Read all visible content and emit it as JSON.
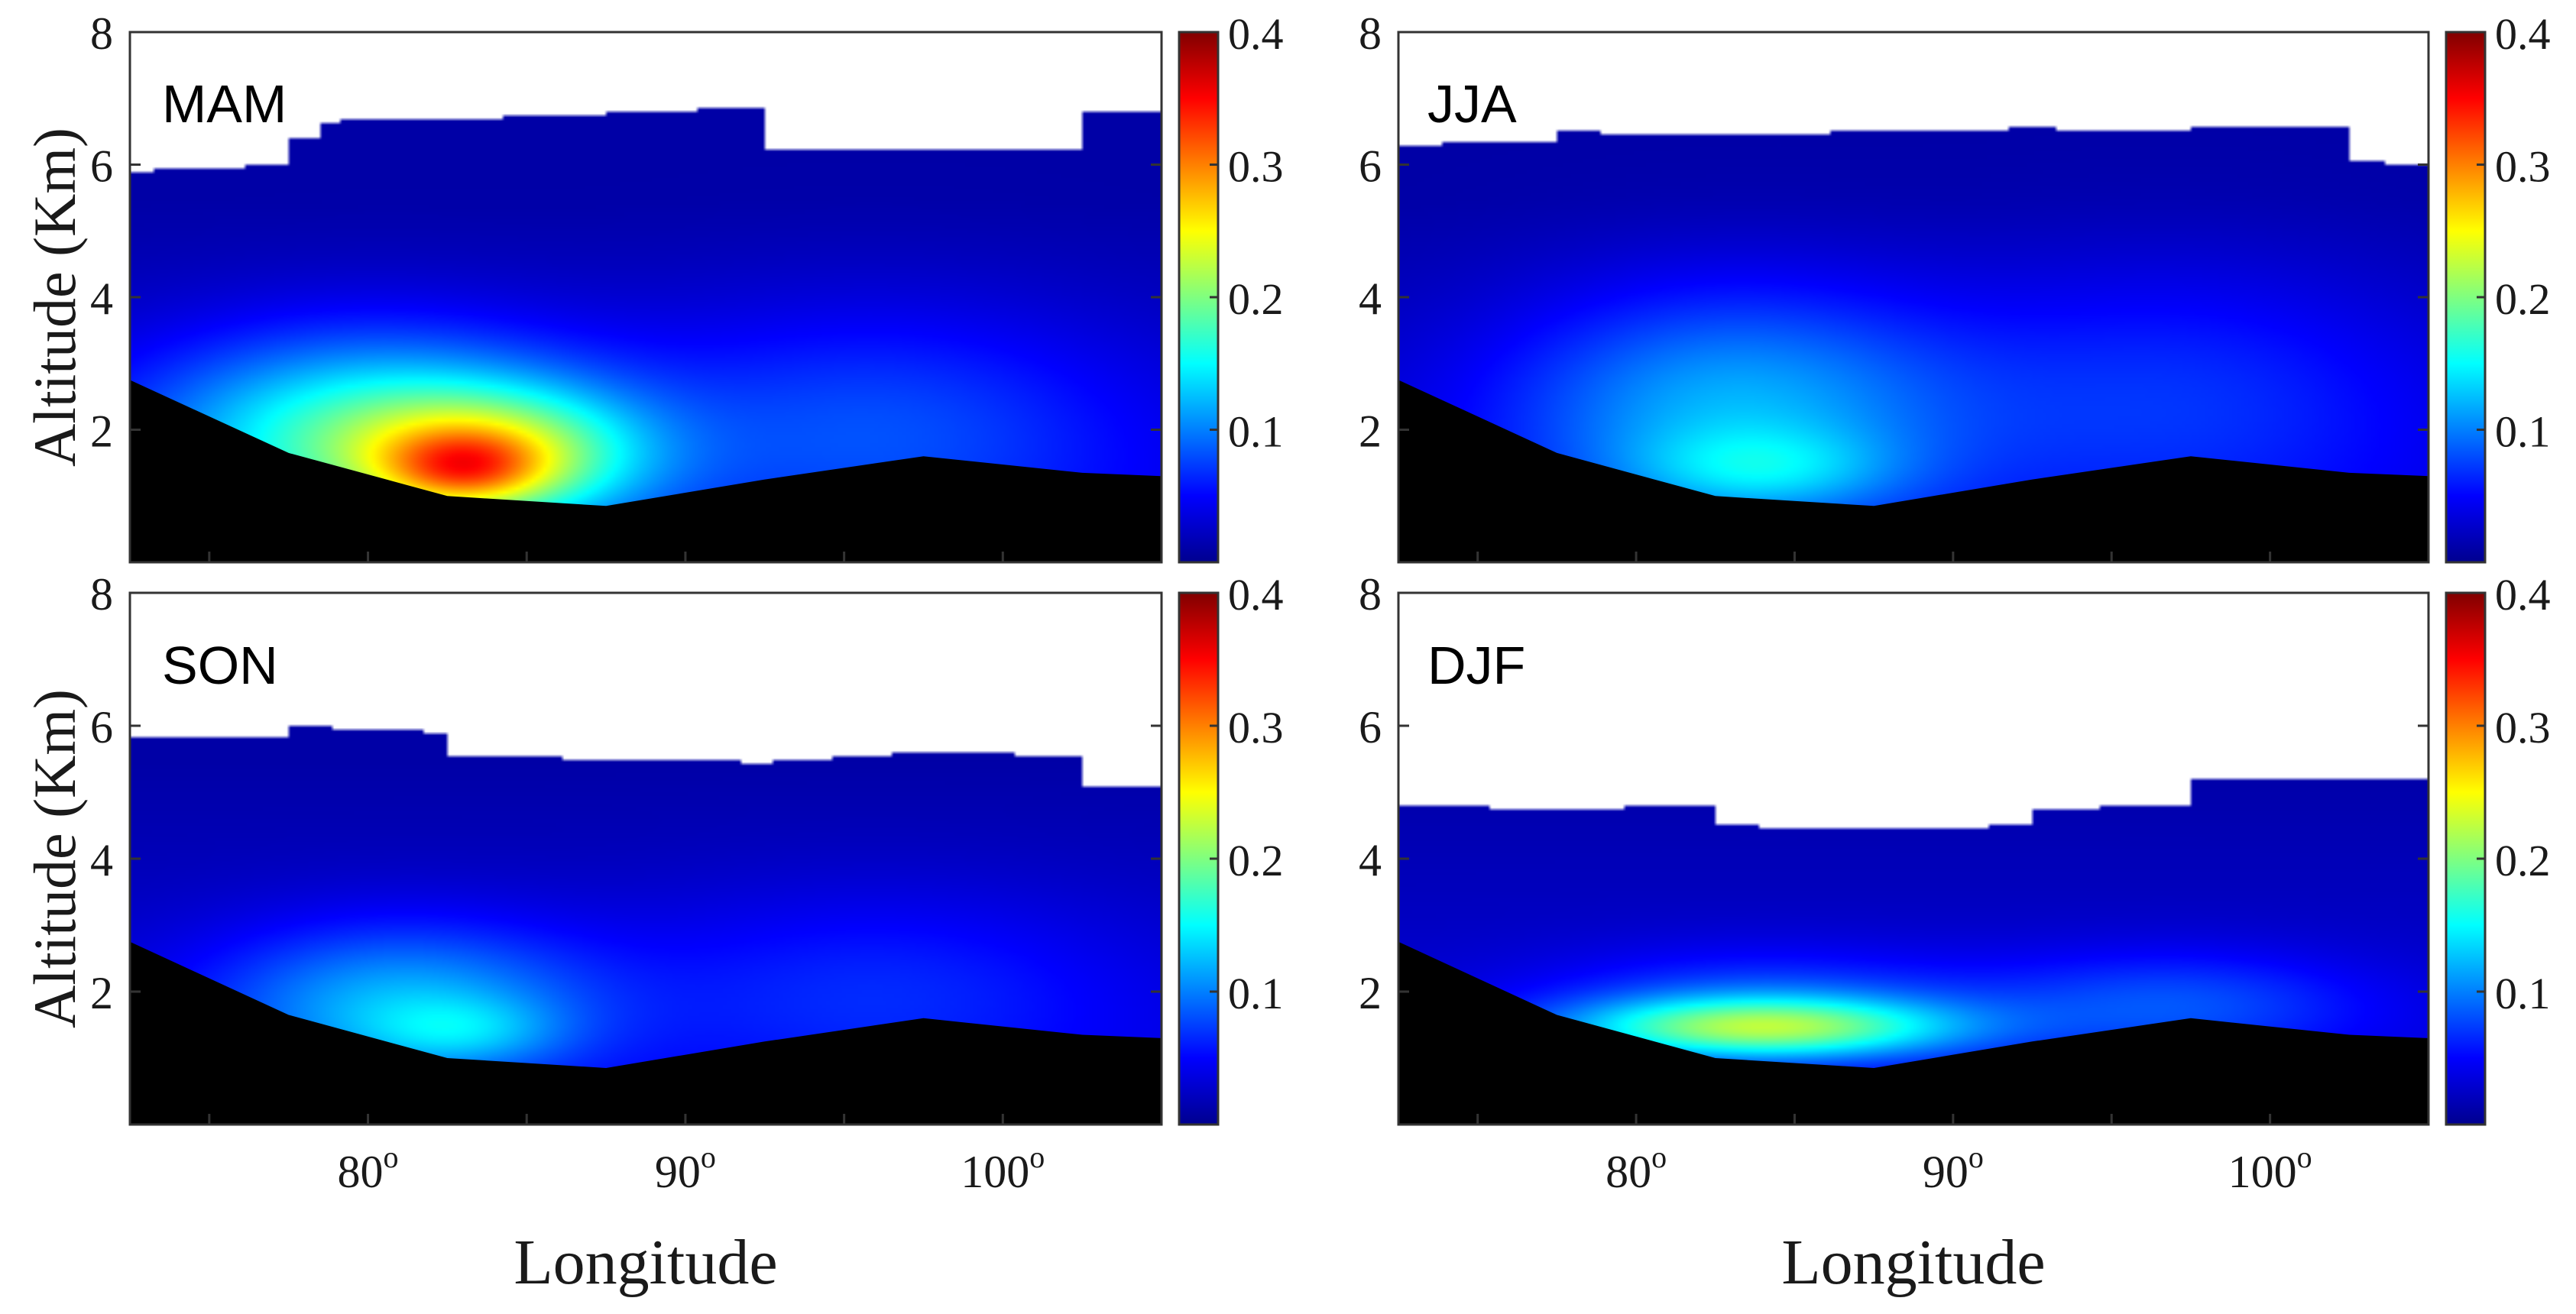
{
  "chart_data": [
    {
      "type": "heatmap",
      "season": "MAM",
      "xlabel": "",
      "ylabel": "Altitude (Km)",
      "xlim": [
        72.5,
        105
      ],
      "ylim": [
        0,
        8
      ],
      "yticks": [
        "2",
        "4",
        "6",
        "8"
      ],
      "xticks": [],
      "colorbar": {
        "min": 0,
        "max": 0.4,
        "ticks": [
          "0.1",
          "0.2",
          "0.3",
          "0.4"
        ]
      },
      "top": [
        [
          72.5,
          5.9
        ],
        [
          77.5,
          6.0
        ],
        [
          77.5,
          6.4
        ],
        [
          78.5,
          6.4
        ],
        [
          78.5,
          6.65
        ],
        [
          87.5,
          6.75
        ],
        [
          87.5,
          6.8
        ],
        [
          92.5,
          6.85
        ],
        [
          92.5,
          6.25
        ],
        [
          97.5,
          6.2
        ],
        [
          102.5,
          6.25
        ],
        [
          102.5,
          6.8
        ],
        [
          105,
          6.8
        ]
      ],
      "terrain": [
        [
          72.5,
          2.75
        ],
        [
          77.5,
          1.65
        ],
        [
          82.5,
          1.0
        ],
        [
          87.5,
          0.85
        ],
        [
          92.5,
          1.25
        ],
        [
          97.5,
          1.6
        ],
        [
          102.5,
          1.35
        ],
        [
          105,
          1.3
        ]
      ],
      "blobs": [
        {
          "lon": 80,
          "alt": 1.9,
          "slon": 7,
          "salt": 1.5,
          "v": 0.14
        },
        {
          "lon": 84,
          "alt": 1.6,
          "slon": 4.5,
          "salt": 0.95,
          "v": 0.13
        },
        {
          "lon": 83,
          "alt": 1.4,
          "slon": 2.5,
          "salt": 0.55,
          "v": 0.09
        },
        {
          "lon": 96,
          "alt": 2.0,
          "slon": 8,
          "salt": 1.8,
          "v": 0.05
        }
      ]
    },
    {
      "type": "heatmap",
      "season": "JJA",
      "xlabel": "",
      "ylabel": "",
      "xlim": [
        72.5,
        105
      ],
      "ylim": [
        0,
        8
      ],
      "yticks": [
        "2",
        "4",
        "6",
        "8"
      ],
      "xticks": [],
      "colorbar": {
        "min": 0,
        "max": 0.4,
        "ticks": [
          "0.1",
          "0.2",
          "0.3",
          "0.4"
        ]
      },
      "top": [
        [
          72.5,
          6.3
        ],
        [
          77.5,
          6.35
        ],
        [
          77.5,
          6.5
        ],
        [
          82.5,
          6.45
        ],
        [
          87.5,
          6.5
        ],
        [
          92.5,
          6.55
        ],
        [
          97.5,
          6.5
        ],
        [
          97.5,
          6.6
        ],
        [
          102.5,
          6.55
        ],
        [
          102.5,
          6.05
        ],
        [
          105,
          6.0
        ]
      ],
      "terrain": [
        [
          72.5,
          2.75
        ],
        [
          77.5,
          1.65
        ],
        [
          82.5,
          1.0
        ],
        [
          87.5,
          0.85
        ],
        [
          92.5,
          1.25
        ],
        [
          97.5,
          1.6
        ],
        [
          102.5,
          1.35
        ],
        [
          105,
          1.3
        ]
      ],
      "blobs": [
        {
          "lon": 83,
          "alt": 2.3,
          "slon": 7,
          "salt": 1.8,
          "v": 0.09
        },
        {
          "lon": 84,
          "alt": 1.4,
          "slon": 4,
          "salt": 0.6,
          "v": 0.05
        },
        {
          "lon": 97,
          "alt": 2.5,
          "slon": 8,
          "salt": 2.0,
          "v": 0.04
        }
      ]
    },
    {
      "type": "heatmap",
      "season": "SON",
      "xlabel": "Longitude",
      "ylabel": "Altitude (Km)",
      "xlim": [
        72.5,
        105
      ],
      "ylim": [
        0,
        8
      ],
      "yticks": [
        "2",
        "4",
        "6",
        "8"
      ],
      "xticks": [
        "80",
        "90",
        "100"
      ],
      "colorbar": {
        "min": 0,
        "max": 0.4,
        "ticks": [
          "0.1",
          "0.2",
          "0.3",
          "0.4"
        ]
      },
      "top": [
        [
          72.5,
          5.8
        ],
        [
          77.5,
          5.85
        ],
        [
          77.5,
          6.0
        ],
        [
          82.5,
          5.9
        ],
        [
          82.5,
          5.55
        ],
        [
          92.5,
          5.45
        ],
        [
          97.5,
          5.6
        ],
        [
          102.5,
          5.55
        ],
        [
          102.5,
          5.1
        ],
        [
          105,
          5.1
        ]
      ],
      "terrain": [
        [
          72.5,
          2.75
        ],
        [
          77.5,
          1.65
        ],
        [
          82.5,
          1.0
        ],
        [
          87.5,
          0.85
        ],
        [
          92.5,
          1.25
        ],
        [
          97.5,
          1.6
        ],
        [
          102.5,
          1.35
        ],
        [
          105,
          1.3
        ]
      ],
      "blobs": [
        {
          "lon": 81,
          "alt": 1.8,
          "slon": 6,
          "salt": 1.2,
          "v": 0.09
        },
        {
          "lon": 83,
          "alt": 1.4,
          "slon": 3,
          "salt": 0.5,
          "v": 0.04
        },
        {
          "lon": 96,
          "alt": 2.0,
          "slon": 8,
          "salt": 1.5,
          "v": 0.035
        }
      ]
    },
    {
      "type": "heatmap",
      "season": "DJF",
      "xlabel": "Longitude",
      "ylabel": "",
      "xlim": [
        72.5,
        105
      ],
      "ylim": [
        0,
        8
      ],
      "yticks": [
        "2",
        "4",
        "6",
        "8"
      ],
      "xticks": [
        "80",
        "90",
        "100"
      ],
      "colorbar": {
        "min": 0,
        "max": 0.4,
        "ticks": [
          "0.1",
          "0.2",
          "0.3",
          "0.4"
        ]
      },
      "top": [
        [
          72.5,
          4.8
        ],
        [
          77.5,
          4.75
        ],
        [
          82.5,
          4.8
        ],
        [
          82.5,
          4.5
        ],
        [
          87.5,
          4.45
        ],
        [
          92.5,
          4.5
        ],
        [
          92.5,
          4.75
        ],
        [
          97.5,
          4.8
        ],
        [
          97.5,
          5.2
        ],
        [
          105,
          5.2
        ]
      ],
      "terrain": [
        [
          72.5,
          2.75
        ],
        [
          77.5,
          1.65
        ],
        [
          82.5,
          1.0
        ],
        [
          87.5,
          0.85
        ],
        [
          92.5,
          1.25
        ],
        [
          97.5,
          1.6
        ],
        [
          102.5,
          1.35
        ],
        [
          105,
          1.3
        ]
      ],
      "blobs": [
        {
          "lon": 84,
          "alt": 1.45,
          "slon": 6,
          "salt": 0.45,
          "v": 0.15
        },
        {
          "lon": 84,
          "alt": 1.8,
          "slon": 7,
          "salt": 0.8,
          "v": 0.05
        },
        {
          "lon": 97,
          "alt": 1.8,
          "slon": 6,
          "salt": 0.8,
          "v": 0.05
        }
      ]
    }
  ]
}
